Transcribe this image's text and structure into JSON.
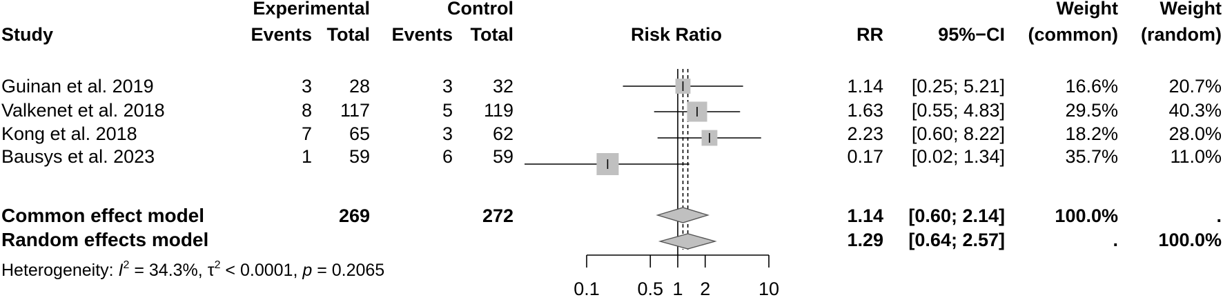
{
  "header": {
    "study": "Study",
    "experimental": "Experimental",
    "control": "Control",
    "events": "Events",
    "total": "Total",
    "risk_ratio": "Risk Ratio",
    "rr": "RR",
    "ci": "95%−CI",
    "weight": "Weight",
    "weight_common": "(common)",
    "weight_random": "(random)"
  },
  "studies": [
    {
      "name": "Guinan et al. 2019",
      "e_events": "3",
      "e_total": "28",
      "c_events": "3",
      "c_total": "32",
      "rr": "1.14",
      "ci": "[0.25; 5.21]",
      "w_common": "16.6%",
      "w_random": "20.7%"
    },
    {
      "name": "Valkenet et al. 2018",
      "e_events": "8",
      "e_total": "117",
      "c_events": "5",
      "c_total": "119",
      "rr": "1.63",
      "ci": "[0.55; 4.83]",
      "w_common": "29.5%",
      "w_random": "40.3%"
    },
    {
      "name": "Kong et al. 2018",
      "e_events": "7",
      "e_total": "65",
      "c_events": "3",
      "c_total": "62",
      "rr": "2.23",
      "ci": "[0.60; 8.22]",
      "w_common": "18.2%",
      "w_random": "28.0%"
    },
    {
      "name": "Bausys et al. 2023",
      "e_events": "1",
      "e_total": "59",
      "c_events": "6",
      "c_total": "59",
      "rr": "0.17",
      "ci": "[0.02; 1.34]",
      "w_common": "35.7%",
      "w_random": "11.0%"
    }
  ],
  "common": {
    "label": "Common effect model",
    "e_total": "269",
    "c_total": "272",
    "rr": "1.14",
    "ci": "[0.60; 2.14]",
    "w_common": "100.0%",
    "w_random": "."
  },
  "random": {
    "label": "Random effects model",
    "rr": "1.29",
    "ci": "[0.64; 2.57]",
    "w_common": ".",
    "w_random": "100.0%"
  },
  "heterogeneity": {
    "prefix": "Heterogeneity: ",
    "i2_symbol": "I",
    "i2_exp": "2",
    "i2_value": " = 34.3%, ",
    "tau_symbol": "τ",
    "tau_exp": "2",
    "tau_value": " < 0.0001, ",
    "p_symbol": "p",
    "p_value": " = 0.2065"
  },
  "chart_data": {
    "type": "forest",
    "title": "Risk Ratio",
    "scale": "log",
    "xlim": [
      0.1,
      10
    ],
    "ticks": [
      0.1,
      0.5,
      1,
      2,
      10
    ],
    "tick_labels": [
      "0.1",
      "0.5",
      "1",
      "2",
      "10"
    ],
    "null_line": 1,
    "studies": [
      {
        "name": "Guinan et al. 2019",
        "rr": 1.14,
        "lower": 0.25,
        "upper": 5.21,
        "weight_common": 16.6
      },
      {
        "name": "Valkenet et al. 2018",
        "rr": 1.63,
        "lower": 0.55,
        "upper": 4.83,
        "weight_common": 29.5
      },
      {
        "name": "Kong et al. 2018",
        "rr": 2.23,
        "lower": 0.6,
        "upper": 8.22,
        "weight_common": 18.2
      },
      {
        "name": "Bausys et al. 2023",
        "rr": 0.17,
        "lower": 0.02,
        "upper": 1.34,
        "weight_common": 35.7
      }
    ],
    "common": {
      "rr": 1.14,
      "lower": 0.6,
      "upper": 2.14
    },
    "random": {
      "rr": 1.29,
      "lower": 0.64,
      "upper": 2.57
    },
    "colors": {
      "box": "#c0c0c0",
      "diamond": "#c0c0c0",
      "line": "#000000"
    }
  }
}
